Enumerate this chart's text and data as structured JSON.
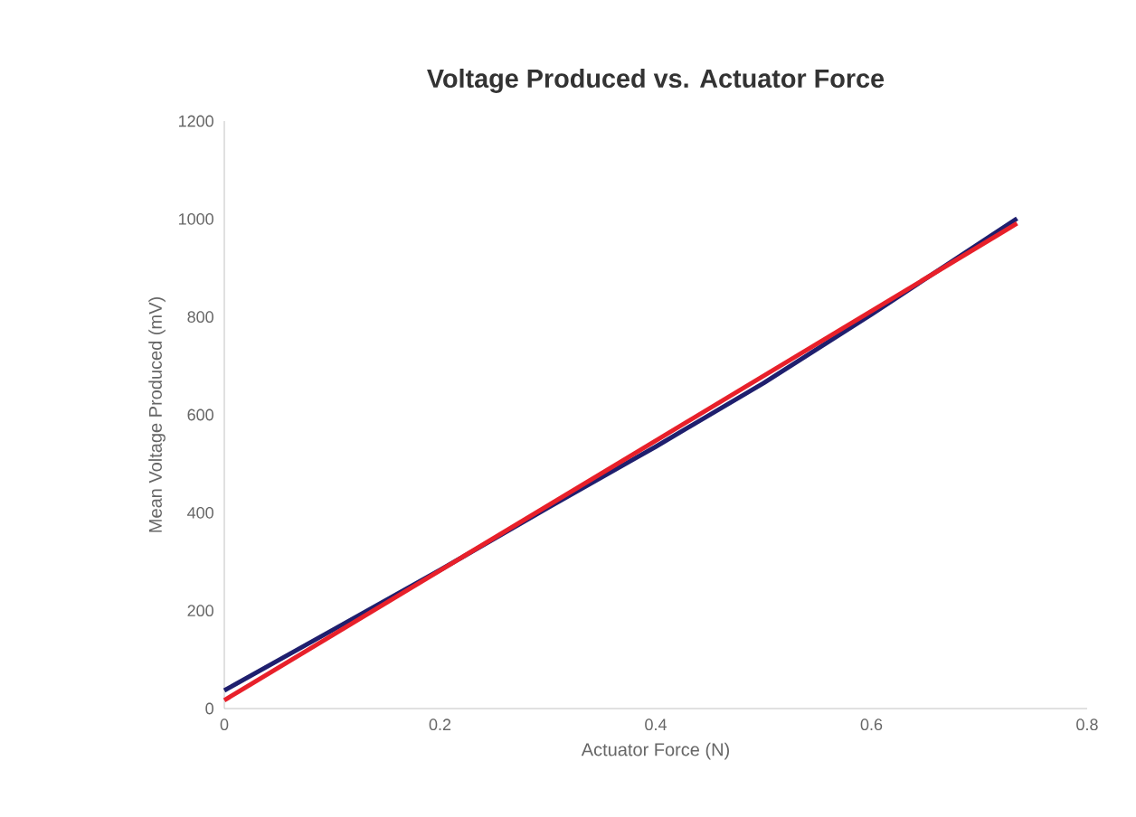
{
  "chart_data": {
    "type": "line",
    "title": "Voltage Produced vs. Actuator Force",
    "xlabel": "Actuator Force (N)",
    "ylabel": "Mean Voltage Produced (mV)",
    "xlim": [
      0,
      0.8
    ],
    "xticks": [
      0,
      0.2,
      0.4,
      0.6,
      0.8
    ],
    "ylim": [
      0,
      1200
    ],
    "yticks": [
      0,
      200,
      400,
      600,
      800,
      1000,
      1200
    ],
    "grid": false,
    "marker": "none",
    "line_style": "solid",
    "series": [
      {
        "color": "#1f1f6e",
        "x": [
          0,
          0.1,
          0.2,
          0.3,
          0.4,
          0.5,
          0.6,
          0.735
        ],
        "values": [
          37,
          160,
          283,
          410,
          535,
          665,
          805,
          1001
        ]
      },
      {
        "color": "#e8202a",
        "x": [
          0,
          0.735
        ],
        "values": [
          17,
          991
        ]
      }
    ]
  }
}
